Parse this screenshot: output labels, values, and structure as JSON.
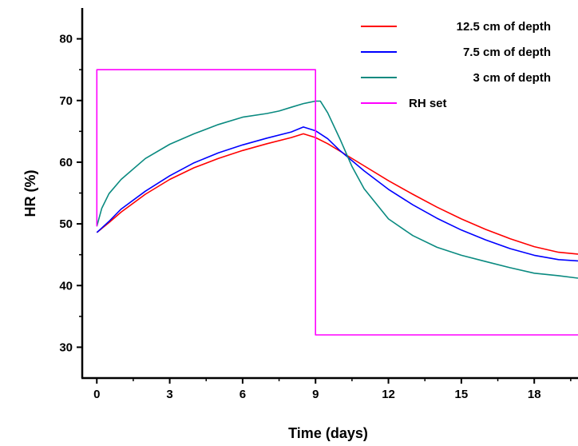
{
  "chart_data": {
    "type": "line",
    "title": "",
    "xlabel": "Time (days)",
    "ylabel": "HR (%)",
    "xlim": [
      -0.6,
      19.8
    ],
    "ylim": [
      25,
      85
    ],
    "x_ticks": [
      0,
      3,
      6,
      9,
      12,
      15,
      18
    ],
    "y_ticks": [
      30,
      40,
      50,
      60,
      70,
      80
    ],
    "legend_position": "top-right",
    "series": [
      {
        "name": "12.5 cm of depth",
        "color": "#ff0000",
        "x": [
          0,
          0.5,
          1,
          2,
          3,
          4,
          5,
          6,
          7,
          8,
          8.5,
          9,
          9.5,
          10,
          11,
          12,
          13,
          14,
          15,
          16,
          17,
          18,
          19,
          19.8
        ],
        "y": [
          48.6,
          50.2,
          51.9,
          54.8,
          57.2,
          59.1,
          60.6,
          61.9,
          63.0,
          64.0,
          64.6,
          64.0,
          63.0,
          61.8,
          59.4,
          57.0,
          54.8,
          52.7,
          50.8,
          49.1,
          47.6,
          46.3,
          45.4,
          45.1
        ]
      },
      {
        "name": "7.5 cm of depth",
        "color": "#0000ff",
        "x": [
          0,
          0.5,
          1,
          2,
          3,
          4,
          5,
          6,
          7,
          8,
          8.5,
          9,
          9.5,
          10,
          11,
          12,
          13,
          14,
          15,
          16,
          17,
          18,
          19,
          19.8
        ],
        "y": [
          48.6,
          50.4,
          52.4,
          55.3,
          57.8,
          59.9,
          61.5,
          62.8,
          63.9,
          64.9,
          65.7,
          65.1,
          63.8,
          61.9,
          58.6,
          55.6,
          53.1,
          50.9,
          49.0,
          47.4,
          46.0,
          44.9,
          44.2,
          44.0
        ]
      },
      {
        "name": "3 cm of depth",
        "color": "#0a8a80",
        "x": [
          0,
          0.2,
          0.5,
          1,
          2,
          3,
          4,
          5,
          6,
          7,
          7.5,
          8,
          8.5,
          9,
          9.2,
          9.5,
          10,
          10.5,
          11,
          12,
          13,
          14,
          15,
          16,
          17,
          18,
          19,
          19.8
        ],
        "y": [
          49.6,
          52.5,
          54.9,
          57.2,
          60.6,
          62.9,
          64.6,
          66.1,
          67.3,
          67.9,
          68.3,
          68.9,
          69.5,
          69.9,
          69.9,
          68.0,
          63.8,
          59.3,
          55.7,
          50.8,
          48.1,
          46.2,
          44.9,
          43.9,
          42.9,
          42.0,
          41.6,
          41.2
        ]
      },
      {
        "name": "RH set",
        "color": "#ff00ff",
        "x": [
          0,
          0,
          9,
          9,
          19.8
        ],
        "y": [
          49.6,
          75,
          75,
          32,
          32
        ]
      }
    ]
  }
}
